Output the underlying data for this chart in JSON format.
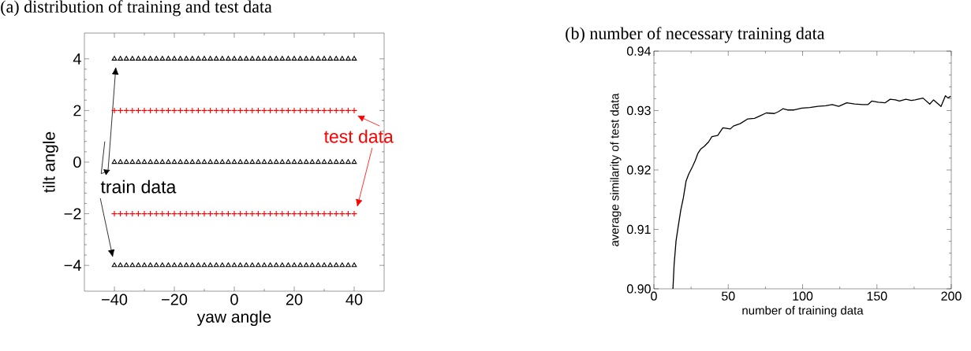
{
  "chart_data": [
    {
      "type": "scatter",
      "title": "(a) distribution of training and test data",
      "xlabel": "yaw angle",
      "ylabel": "tilt angle",
      "xlim": [
        -50,
        50
      ],
      "ylim": [
        -5,
        5
      ],
      "annotations": [
        "train data",
        "test data"
      ],
      "xticks": [
        {
          "value": -40,
          "label": "−40"
        },
        {
          "value": -20,
          "label": "−20"
        },
        0,
        20,
        40
      ],
      "yticks": [
        {
          "value": -4,
          "label": "−4"
        },
        {
          "value": -2,
          "label": "−2"
        },
        0,
        2,
        4
      ],
      "series": [
        {
          "color": "#000000",
          "marker": "triangle",
          "x": [
            -40,
            -38,
            -36,
            -34,
            -32,
            -30,
            -28,
            -26,
            -24,
            -22,
            -20,
            -18,
            -16,
            -14,
            -12,
            -10,
            -8,
            -6,
            -4,
            -2,
            0,
            2,
            4,
            6,
            8,
            10,
            12,
            14,
            16,
            18,
            20,
            22,
            24,
            26,
            28,
            30,
            32,
            34,
            36,
            38,
            40,
            -40,
            -38,
            -36,
            -34,
            -32,
            -30,
            -28,
            -26,
            -24,
            -22,
            -20,
            -18,
            -16,
            -14,
            -12,
            -10,
            -8,
            -6,
            -4,
            -2,
            0,
            2,
            4,
            6,
            8,
            10,
            12,
            14,
            16,
            18,
            20,
            22,
            24,
            26,
            28,
            30,
            32,
            34,
            36,
            38,
            40,
            -40,
            -38,
            -36,
            -34,
            -32,
            -30,
            -28,
            -26,
            -24,
            -22,
            -20,
            -18,
            -16,
            -14,
            -12,
            -10,
            -8,
            -6,
            -4,
            -2,
            0,
            2,
            4,
            6,
            8,
            10,
            12,
            14,
            16,
            18,
            20,
            22,
            24,
            26,
            28,
            30,
            32,
            34,
            36,
            38,
            40
          ],
          "values": [
            4,
            4,
            4,
            4,
            4,
            4,
            4,
            4,
            4,
            4,
            4,
            4,
            4,
            4,
            4,
            4,
            4,
            4,
            4,
            4,
            4,
            4,
            4,
            4,
            4,
            4,
            4,
            4,
            4,
            4,
            4,
            4,
            4,
            4,
            4,
            4,
            4,
            4,
            4,
            4,
            4,
            0,
            0,
            0,
            0,
            0,
            0,
            0,
            0,
            0,
            0,
            0,
            0,
            0,
            0,
            0,
            0,
            0,
            0,
            0,
            0,
            0,
            0,
            0,
            0,
            0,
            0,
            0,
            0,
            0,
            0,
            0,
            0,
            0,
            0,
            0,
            0,
            0,
            0,
            0,
            0,
            0,
            -4,
            -4,
            -4,
            -4,
            -4,
            -4,
            -4,
            -4,
            -4,
            -4,
            -4,
            -4,
            -4,
            -4,
            -4,
            -4,
            -4,
            -4,
            -4,
            -4,
            -4,
            -4,
            -4,
            -4,
            -4,
            -4,
            -4,
            -4,
            -4,
            -4,
            -4,
            -4,
            -4,
            -4,
            -4,
            -4,
            -4,
            -4,
            -4,
            -4,
            -4
          ]
        },
        {
          "color": "#ff0000",
          "marker": "cross",
          "x": [
            -40,
            -38,
            -36,
            -34,
            -32,
            -30,
            -28,
            -26,
            -24,
            -22,
            -20,
            -18,
            -16,
            -14,
            -12,
            -10,
            -8,
            -6,
            -4,
            -2,
            0,
            2,
            4,
            6,
            8,
            10,
            12,
            14,
            16,
            18,
            20,
            22,
            24,
            26,
            28,
            30,
            32,
            34,
            36,
            38,
            40,
            -40,
            -38,
            -36,
            -34,
            -32,
            -30,
            -28,
            -26,
            -24,
            -22,
            -20,
            -18,
            -16,
            -14,
            -12,
            -10,
            -8,
            -6,
            -4,
            -2,
            0,
            2,
            4,
            6,
            8,
            10,
            12,
            14,
            16,
            18,
            20,
            22,
            24,
            26,
            28,
            30,
            32,
            34,
            36,
            38,
            40
          ],
          "values": [
            2,
            2,
            2,
            2,
            2,
            2,
            2,
            2,
            2,
            2,
            2,
            2,
            2,
            2,
            2,
            2,
            2,
            2,
            2,
            2,
            2,
            2,
            2,
            2,
            2,
            2,
            2,
            2,
            2,
            2,
            2,
            2,
            2,
            2,
            2,
            2,
            2,
            2,
            2,
            2,
            2,
            -2,
            -2,
            -2,
            -2,
            -2,
            -2,
            -2,
            -2,
            -2,
            -2,
            -2,
            -2,
            -2,
            -2,
            -2,
            -2,
            -2,
            -2,
            -2,
            -2,
            -2,
            -2,
            -2,
            -2,
            -2,
            -2,
            -2,
            -2,
            -2,
            -2,
            -2,
            -2,
            -2,
            -2,
            -2,
            -2,
            -2,
            -2,
            -2,
            -2,
            -2
          ]
        }
      ]
    },
    {
      "type": "line",
      "title": "(b) number of necessary training data",
      "xlabel": "number of training data",
      "ylabel": "average similarity of test data",
      "xlim": [
        0,
        200
      ],
      "ylim": [
        0.9,
        0.94
      ],
      "xticks": [
        0,
        50,
        100,
        150,
        200
      ],
      "yticks": [
        {
          "value": 0.9,
          "label": "0.90"
        },
        {
          "value": 0.91,
          "label": "0.91"
        },
        {
          "value": 0.92,
          "label": "0.92"
        },
        {
          "value": 0.93,
          "label": "0.93"
        },
        {
          "value": 0.94,
          "label": "0.94"
        }
      ],
      "marker": "none",
      "series": [
        {
          "color": "#000000",
          "x": [
            12.8,
            13.6,
            14.9,
            16.3,
            18.1,
            19.8,
            21.6,
            23.4,
            26.0,
            27.8,
            29.6,
            31.4,
            34.0,
            36.7,
            39.0,
            42.9,
            46.4,
            51.4,
            53.5,
            58.0,
            63.2,
            67.7,
            71.2,
            75.6,
            81.0,
            83.6,
            86.8,
            89.8,
            94.3,
            99.5,
            104.9,
            110.2,
            115.5,
            119.9,
            124.3,
            129.7,
            135.0,
            140.3,
            143.9,
            146.5,
            150.9,
            155.4,
            158.9,
            162.4,
            165.1,
            169.5,
            173.1,
            175.7,
            181.0,
            185.5,
            188.1,
            193.1,
            196.1,
            197.8,
            199.6
          ],
          "values": [
            0.9,
            0.9041,
            0.9081,
            0.9104,
            0.9133,
            0.9153,
            0.9181,
            0.9193,
            0.9206,
            0.9216,
            0.9228,
            0.9235,
            0.924,
            0.9247,
            0.9256,
            0.9258,
            0.9271,
            0.9269,
            0.9274,
            0.9278,
            0.9286,
            0.9287,
            0.9291,
            0.9296,
            0.9295,
            0.9298,
            0.9303,
            0.9301,
            0.9301,
            0.9304,
            0.9305,
            0.9307,
            0.9308,
            0.931,
            0.9307,
            0.9313,
            0.9311,
            0.931,
            0.931,
            0.9316,
            0.9314,
            0.9313,
            0.9319,
            0.9318,
            0.9316,
            0.9319,
            0.9317,
            0.9318,
            0.9321,
            0.9311,
            0.9318,
            0.9307,
            0.9325,
            0.9321,
            0.9324
          ]
        }
      ]
    }
  ]
}
